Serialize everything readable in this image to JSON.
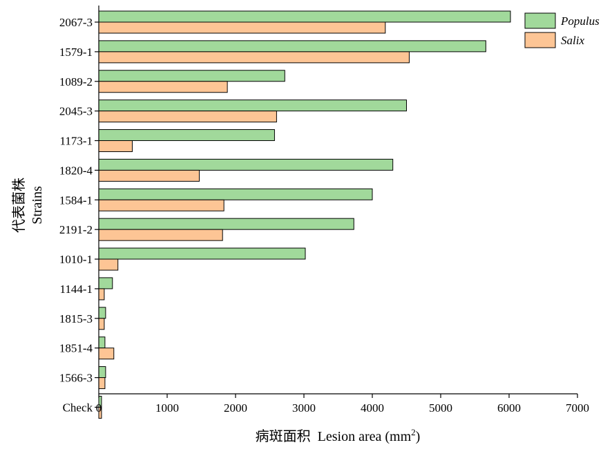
{
  "chart_data": {
    "type": "bar",
    "orientation": "horizontal",
    "categories": [
      "2067-3",
      "1579-1",
      "1089-2",
      "2045-3",
      "1173-1",
      "1820-4",
      "1584-1",
      "2191-2",
      "1010-1",
      "1144-1",
      "1815-3",
      "1851-4",
      "1566-3",
      "Check"
    ],
    "series": [
      {
        "name": "Populus",
        "color": "#a1d99b",
        "values": [
          6020,
          5660,
          2720,
          4500,
          2570,
          4300,
          4000,
          3730,
          3020,
          200,
          100,
          90,
          100,
          40
        ]
      },
      {
        "name": "Salix",
        "color": "#fdc595",
        "values": [
          4190,
          4540,
          1880,
          2600,
          490,
          1470,
          1830,
          1810,
          280,
          80,
          80,
          220,
          90,
          40
        ]
      }
    ],
    "xlabel_zh": "病斑面积",
    "xlabel_en": "Lesion area (mm",
    "xlabel_sup": "2",
    "xlabel_close": ")",
    "ylabel_zh": "代表菌株",
    "ylabel_en": "Strains",
    "xlim": [
      0,
      7000
    ],
    "xticks": [
      "0",
      "1000",
      "2000",
      "3000",
      "4000",
      "5000",
      "6000",
      "7000"
    ],
    "legend_position": "top-right",
    "grid": false
  }
}
